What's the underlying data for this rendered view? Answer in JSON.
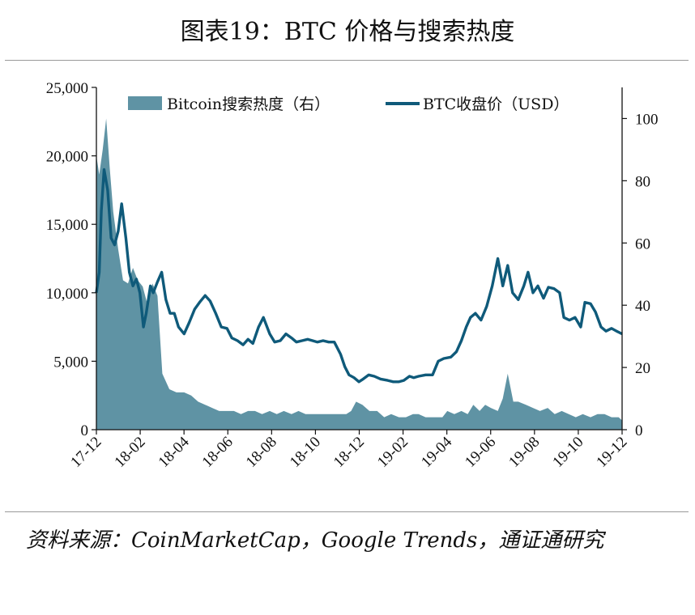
{
  "title": "图表19：BTC 价格与搜索热度",
  "source": "资料来源：CoinMarketCap，Google Trends，通证通研究",
  "colors": {
    "price_line": "#0f5a7a",
    "search_area": "#5f93a4",
    "axis": "#111111"
  },
  "chart_data": {
    "type": "line",
    "x_tick_labels": [
      "17-12",
      "18-02",
      "18-04",
      "18-06",
      "18-08",
      "18-10",
      "18-12",
      "19-02",
      "19-04",
      "19-06",
      "19-08",
      "19-10",
      "19-12"
    ],
    "y_left": {
      "ticks": [
        "0",
        "5,000",
        "10,000",
        "15,000",
        "20,000",
        "25,000"
      ],
      "min": 0,
      "max": 25000
    },
    "y_right": {
      "ticks": [
        "0",
        "20",
        "40",
        "60",
        "80",
        "100"
      ],
      "min": 0,
      "max": 110
    },
    "x_range": [
      "2017-12-01",
      "2019-12-20"
    ],
    "legend_placement": "top",
    "series": [
      {
        "name": "Bitcoin搜索热度（右）",
        "type": "area",
        "axis": "right",
        "x": [
          "2017-12-01",
          "2017-12-05",
          "2017-12-10",
          "2017-12-15",
          "2017-12-20",
          "2017-12-25",
          "2018-01-01",
          "2018-01-08",
          "2018-01-15",
          "2018-01-22",
          "2018-01-29",
          "2018-02-05",
          "2018-02-12",
          "2018-02-19",
          "2018-02-26",
          "2018-03-05",
          "2018-03-15",
          "2018-03-25",
          "2018-04-05",
          "2018-04-15",
          "2018-04-25",
          "2018-05-05",
          "2018-05-15",
          "2018-05-25",
          "2018-06-05",
          "2018-06-15",
          "2018-06-25",
          "2018-07-05",
          "2018-07-15",
          "2018-07-25",
          "2018-08-05",
          "2018-08-15",
          "2018-08-25",
          "2018-09-05",
          "2018-09-15",
          "2018-09-25",
          "2018-10-05",
          "2018-10-15",
          "2018-10-25",
          "2018-11-05",
          "2018-11-15",
          "2018-11-22",
          "2018-11-29",
          "2018-12-06",
          "2018-12-15",
          "2018-12-25",
          "2019-01-05",
          "2019-01-15",
          "2019-01-25",
          "2019-02-05",
          "2019-02-15",
          "2019-02-25",
          "2019-03-05",
          "2019-03-15",
          "2019-03-25",
          "2019-04-02",
          "2019-04-08",
          "2019-04-15",
          "2019-04-25",
          "2019-05-05",
          "2019-05-14",
          "2019-05-22",
          "2019-05-31",
          "2019-06-08",
          "2019-06-16",
          "2019-06-26",
          "2019-07-03",
          "2019-07-10",
          "2019-07-18",
          "2019-07-25",
          "2019-08-05",
          "2019-08-15",
          "2019-08-25",
          "2019-09-05",
          "2019-09-15",
          "2019-09-25",
          "2019-10-05",
          "2019-10-15",
          "2019-10-25",
          "2019-11-05",
          "2019-11-15",
          "2019-11-25",
          "2019-12-05",
          "2019-12-15",
          "2019-12-20"
        ],
        "values": [
          88,
          82,
          90,
          100,
          84,
          70,
          58,
          48,
          47,
          52,
          48,
          46,
          40,
          47,
          43,
          18,
          13,
          12,
          12,
          11,
          9,
          8,
          7,
          6,
          6,
          6,
          5,
          6,
          6,
          5,
          6,
          5,
          6,
          5,
          6,
          5,
          5,
          5,
          5,
          5,
          5,
          5,
          6,
          9,
          8,
          6,
          6,
          4,
          5,
          4,
          4,
          5,
          5,
          4,
          4,
          4,
          4,
          6,
          5,
          6,
          5,
          8,
          6,
          8,
          7,
          6,
          10,
          18,
          9,
          9,
          8,
          7,
          6,
          7,
          5,
          6,
          5,
          4,
          5,
          4,
          5,
          5,
          4,
          4,
          3
        ]
      },
      {
        "name": "BTC收盘价（USD）",
        "type": "line",
        "axis": "left",
        "x": [
          "2017-12-01",
          "2017-12-05",
          "2017-12-08",
          "2017-12-12",
          "2017-12-17",
          "2017-12-22",
          "2017-12-27",
          "2018-01-01",
          "2018-01-06",
          "2018-01-12",
          "2018-01-17",
          "2018-01-22",
          "2018-01-27",
          "2018-02-01",
          "2018-02-06",
          "2018-02-10",
          "2018-02-16",
          "2018-02-20",
          "2018-02-26",
          "2018-03-04",
          "2018-03-10",
          "2018-03-16",
          "2018-03-22",
          "2018-03-28",
          "2018-04-05",
          "2018-04-12",
          "2018-04-20",
          "2018-04-27",
          "2018-05-05",
          "2018-05-12",
          "2018-05-20",
          "2018-05-28",
          "2018-06-05",
          "2018-06-12",
          "2018-06-20",
          "2018-06-28",
          "2018-07-05",
          "2018-07-12",
          "2018-07-20",
          "2018-07-27",
          "2018-08-05",
          "2018-08-12",
          "2018-08-20",
          "2018-08-28",
          "2018-09-05",
          "2018-09-12",
          "2018-09-20",
          "2018-09-28",
          "2018-10-05",
          "2018-10-12",
          "2018-10-20",
          "2018-10-28",
          "2018-11-05",
          "2018-11-14",
          "2018-11-20",
          "2018-11-26",
          "2018-12-03",
          "2018-12-10",
          "2018-12-16",
          "2018-12-24",
          "2019-01-01",
          "2019-01-10",
          "2019-01-20",
          "2019-01-28",
          "2019-02-05",
          "2019-02-12",
          "2019-02-20",
          "2019-02-26",
          "2019-03-05",
          "2019-03-15",
          "2019-03-25",
          "2019-04-02",
          "2019-04-10",
          "2019-04-20",
          "2019-04-28",
          "2019-05-05",
          "2019-05-12",
          "2019-05-18",
          "2019-05-25",
          "2019-06-02",
          "2019-06-10",
          "2019-06-18",
          "2019-06-26",
          "2019-07-03",
          "2019-07-10",
          "2019-07-17",
          "2019-07-25",
          "2019-08-02",
          "2019-08-08",
          "2019-08-15",
          "2019-08-22",
          "2019-08-30",
          "2019-09-06",
          "2019-09-14",
          "2019-09-22",
          "2019-09-28",
          "2019-10-06",
          "2019-10-14",
          "2019-10-22",
          "2019-10-28",
          "2019-11-05",
          "2019-11-12",
          "2019-11-20",
          "2019-11-27",
          "2019-12-05",
          "2019-12-12",
          "2019-12-20"
        ],
        "values": [
          10000,
          11500,
          16000,
          19000,
          17500,
          14000,
          13500,
          14500,
          16500,
          14000,
          11500,
          10500,
          11000,
          10000,
          7500,
          8500,
          10500,
          10000,
          10800,
          11500,
          9500,
          8500,
          8500,
          7500,
          7000,
          7800,
          8800,
          9300,
          9800,
          9400,
          8500,
          7500,
          7400,
          6700,
          6500,
          6200,
          6600,
          6300,
          7500,
          8200,
          7000,
          6400,
          6500,
          7000,
          6700,
          6400,
          6500,
          6600,
          6500,
          6400,
          6500,
          6400,
          6400,
          5500,
          4600,
          4000,
          3800,
          3500,
          3700,
          4000,
          3900,
          3700,
          3600,
          3500,
          3500,
          3600,
          3900,
          3800,
          3900,
          4000,
          4000,
          5000,
          5200,
          5300,
          5700,
          6500,
          7500,
          8200,
          8500,
          8000,
          9000,
          10500,
          12500,
          10500,
          12000,
          10000,
          9500,
          10500,
          11500,
          10000,
          10500,
          9600,
          10400,
          10300,
          10000,
          8200,
          8000,
          8200,
          7500,
          9300,
          9200,
          8600,
          7500,
          7200,
          7400,
          7200,
          7000
        ]
      }
    ]
  }
}
